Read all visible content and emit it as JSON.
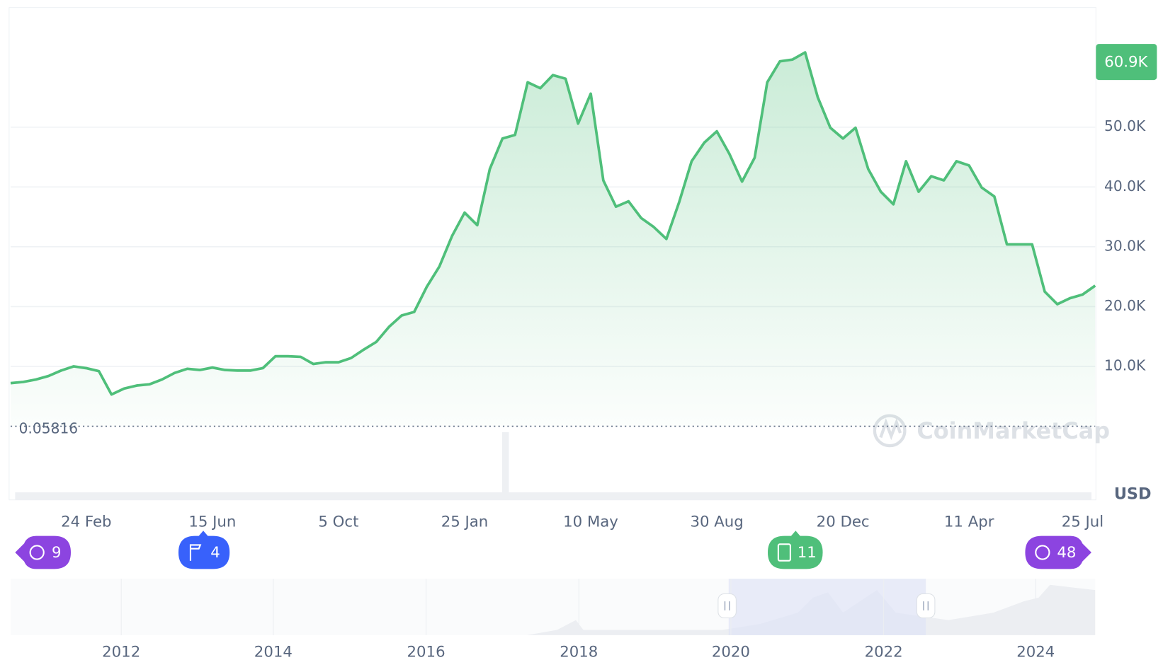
{
  "chart_data": {
    "type": "line",
    "categories": [
      null,
      null,
      null,
      null,
      null,
      null,
      "24 Feb",
      null,
      null,
      null,
      null,
      null,
      null,
      null,
      null,
      null,
      "15 Jun",
      null,
      null,
      null,
      null,
      null,
      null,
      null,
      null,
      null,
      "5 Oct",
      null,
      null,
      null,
      null,
      null,
      null,
      null,
      null,
      null,
      "25 Jan",
      null,
      null,
      null,
      null,
      null,
      null,
      null,
      null,
      null,
      "10 May",
      null,
      null,
      null,
      null,
      null,
      null,
      null,
      null,
      null,
      "30 Aug",
      null,
      null,
      null,
      null,
      null,
      null,
      null,
      null,
      null,
      "20 Dec",
      null,
      null,
      null,
      null,
      null,
      null,
      null,
      null,
      null,
      "11 Apr",
      null,
      null,
      null,
      null,
      null,
      null,
      null,
      null,
      "25 Jul",
      null
    ],
    "series": [
      {
        "color": "#4fbf7a",
        "values": [
          7200,
          7400,
          7800,
          8400,
          9300,
          10000,
          9700,
          9200,
          5300,
          6300,
          6800,
          7000,
          7800,
          8900,
          9600,
          9400,
          9800,
          9400,
          9300,
          9300,
          9700,
          11700,
          11700,
          11600,
          10400,
          10700,
          10700,
          11400,
          12800,
          14100,
          16600,
          18500,
          19100,
          23300,
          26700,
          31800,
          35700,
          33600,
          43000,
          48100,
          48700,
          57500,
          56500,
          58700,
          58100,
          50600,
          55600,
          41100,
          36700,
          37600,
          34800,
          33300,
          31300,
          37400,
          44300,
          47400,
          49300,
          45500,
          40900,
          44900,
          57500,
          61000,
          61300,
          62500,
          55000,
          49900,
          48100,
          49900,
          43000,
          39200,
          37100,
          44300,
          39200,
          41800,
          41100,
          44300,
          43600,
          39900,
          38400,
          30400,
          30400,
          30400,
          22500,
          20400,
          21400,
          22000,
          23500
        ]
      }
    ],
    "ylim": [
      0,
      70000
    ],
    "yticks": [
      {
        "value": 10000,
        "label": "10.0K"
      },
      {
        "value": 20000,
        "label": "20.0K"
      },
      {
        "value": 30000,
        "label": "30.0K"
      },
      {
        "value": 40000,
        "label": "40.0K"
      },
      {
        "value": 50000,
        "label": "50.0K"
      }
    ],
    "grid": true,
    "baseline": {
      "value": 0.05816,
      "label": "0.05816"
    },
    "current_price": {
      "value": 60900,
      "label": "60.9K"
    },
    "currency": "USD",
    "watermark": "CoinMarketCap",
    "events": [
      {
        "label": "9"
      },
      {
        "label": "4"
      },
      {
        "label": "11"
      },
      {
        "label": "48"
      }
    ],
    "navigator_years": [
      "2012",
      "2014",
      "2016",
      "2018",
      "2020",
      "2022",
      "2024"
    ]
  }
}
